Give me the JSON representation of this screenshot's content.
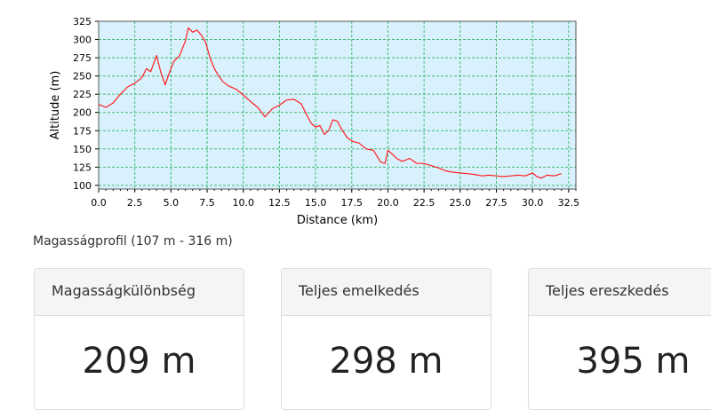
{
  "chart_data": {
    "type": "line",
    "xlabel": "Distance (km)",
    "ylabel": "Altitude (m)",
    "xlim": [
      0,
      33
    ],
    "ylim": [
      95,
      325
    ],
    "x_ticks": [
      "0.0",
      "2.5",
      "5.0",
      "7.5",
      "10.0",
      "12.5",
      "15.0",
      "17.5",
      "20.0",
      "22.5",
      "25.0",
      "27.5",
      "30.0",
      "32.5"
    ],
    "x_tick_values": [
      0,
      2.5,
      5,
      7.5,
      10,
      12.5,
      15,
      17.5,
      20,
      22.5,
      25,
      27.5,
      30,
      32.5
    ],
    "y_ticks": [
      "100",
      "125",
      "150",
      "175",
      "200",
      "225",
      "250",
      "275",
      "300",
      "325"
    ],
    "y_tick_values": [
      100,
      125,
      150,
      175,
      200,
      225,
      250,
      275,
      300,
      325
    ],
    "grid": true,
    "colors": {
      "line": "#ff2020",
      "plot_bg": "#d8f1fd",
      "grid": "#44bb77"
    },
    "series": [
      {
        "x": [
          0,
          0.5,
          1,
          1.5,
          2,
          2.5,
          3,
          3.3,
          3.6,
          4,
          4.3,
          4.6,
          4.9,
          5.2,
          5.6,
          6,
          6.2,
          6.5,
          6.8,
          7.1,
          7.4,
          7.7,
          8,
          8.3,
          8.6,
          9,
          9.5,
          10,
          10.5,
          11,
          11.5,
          12,
          12.5,
          13,
          13.5,
          14,
          14.3,
          14.7,
          15,
          15.3,
          15.6,
          15.9,
          16.2,
          16.5,
          16.8,
          17.2,
          17.6,
          18,
          18.5,
          19,
          19.5,
          19.8,
          20,
          20.3,
          20.6,
          21,
          21.5,
          22,
          22.5,
          23,
          23.5,
          24,
          24.5,
          25,
          25.5,
          26,
          26.5,
          27,
          27.5,
          28,
          28.5,
          29,
          29.5,
          30,
          30.3,
          30.6,
          31,
          31.5,
          32
        ],
        "y": [
          211,
          207,
          213,
          225,
          235,
          240,
          248,
          260,
          256,
          278,
          255,
          238,
          255,
          270,
          278,
          298,
          316,
          310,
          313,
          306,
          296,
          275,
          260,
          250,
          242,
          236,
          232,
          224,
          215,
          207,
          194,
          205,
          210,
          217,
          218,
          212,
          200,
          185,
          180,
          182,
          170,
          175,
          190,
          188,
          177,
          165,
          160,
          158,
          150,
          148,
          132,
          130,
          148,
          143,
          137,
          133,
          137,
          130,
          130,
          127,
          124,
          120,
          118,
          117,
          116,
          115,
          113,
          114,
          113,
          112,
          113,
          114,
          113,
          117,
          112,
          110,
          114,
          113,
          116
        ]
      }
    ]
  },
  "caption": "Magasságprofil (107 m - 316 m)",
  "stats": [
    {
      "title": "Magasságkülönbség",
      "value": "209 m"
    },
    {
      "title": "Teljes emelkedés",
      "value": "298 m"
    },
    {
      "title": "Teljes ereszkedés",
      "value": "395 m"
    }
  ]
}
